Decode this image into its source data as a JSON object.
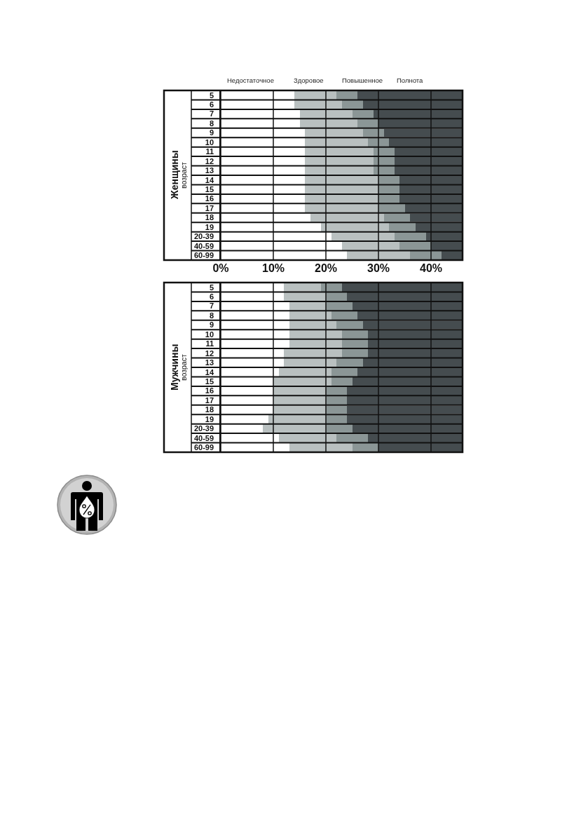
{
  "chart_data": [
    {
      "type": "bar",
      "orientation": "horizontal",
      "stacked": true,
      "title": "Женщины",
      "ylabel": "возраст",
      "categories": [
        "5",
        "6",
        "7",
        "8",
        "9",
        "10",
        "11",
        "12",
        "13",
        "14",
        "15",
        "16",
        "17",
        "18",
        "19",
        "20-39",
        "40-59",
        "60-99"
      ],
      "series": [
        {
          "name": "Недостаточное",
          "color": "#ffffff",
          "values": [
            14,
            14,
            15,
            15,
            16,
            16,
            16,
            16,
            16,
            16,
            16,
            16,
            16,
            17,
            19,
            21,
            23,
            24
          ]
        },
        {
          "name": "Здоровое",
          "color": "#b9c0c0",
          "values": [
            8,
            9,
            10,
            11,
            11,
            12,
            13,
            13,
            13,
            14,
            14,
            14,
            14,
            14,
            13,
            12,
            11,
            12
          ]
        },
        {
          "name": "Повышенное",
          "color": "#8b9696",
          "values": [
            4,
            4,
            4,
            4,
            4,
            4,
            4,
            4,
            4,
            4,
            4,
            4,
            5,
            5,
            5,
            6,
            6,
            6
          ]
        },
        {
          "name": "Полнота",
          "color": "#454c4f",
          "values": [
            20,
            19,
            17,
            16,
            15,
            14,
            13,
            13,
            13,
            12,
            12,
            12,
            11,
            10,
            9,
            7,
            6,
            4
          ]
        }
      ],
      "xlim": [
        0,
        46
      ],
      "xticks": [
        {
          "value": 0,
          "label": "0%"
        },
        {
          "value": 10,
          "label": "10%"
        },
        {
          "value": 20,
          "label": "20%"
        },
        {
          "value": 30,
          "label": "30%"
        },
        {
          "value": 40,
          "label": "40%"
        }
      ],
      "grid": true
    },
    {
      "type": "bar",
      "orientation": "horizontal",
      "stacked": true,
      "title": "Мужчины",
      "ylabel": "возраст",
      "categories": [
        "5",
        "6",
        "7",
        "8",
        "9",
        "10",
        "11",
        "12",
        "13",
        "14",
        "15",
        "16",
        "17",
        "18",
        "19",
        "20-39",
        "40-59",
        "60-99"
      ],
      "series": [
        {
          "color": "#ffffff",
          "values": [
            12,
            12,
            13,
            13,
            13,
            13,
            13,
            12,
            12,
            11,
            10,
            10,
            10,
            10,
            9,
            8,
            11,
            13
          ]
        },
        {
          "color": "#b9c0c0",
          "values": [
            7,
            8,
            7,
            8,
            9,
            10,
            10,
            11,
            10,
            10,
            11,
            10,
            10,
            10,
            11,
            12,
            11,
            12
          ]
        },
        {
          "color": "#8b9696",
          "values": [
            4,
            4,
            5,
            5,
            5,
            5,
            5,
            5,
            5,
            5,
            4,
            4,
            4,
            4,
            4,
            5,
            6,
            5
          ]
        },
        {
          "color": "#454c4f",
          "values": [
            23,
            22,
            21,
            20,
            19,
            18,
            18,
            18,
            19,
            20,
            21,
            22,
            22,
            22,
            22,
            21,
            18,
            16
          ]
        }
      ],
      "xlim": [
        0,
        46
      ],
      "xticks": [
        0,
        10,
        20,
        30,
        40
      ],
      "tick_labels": "y",
      "grid": true
    }
  ]
}
